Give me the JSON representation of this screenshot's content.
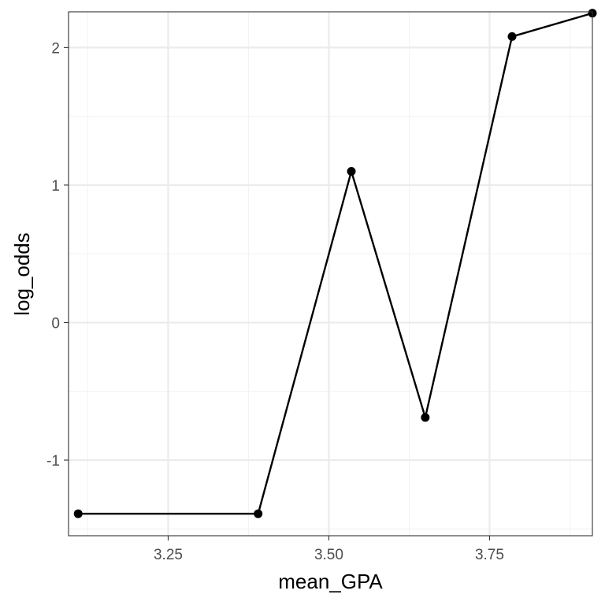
{
  "chart_data": {
    "type": "line",
    "xlabel": "mean_GPA",
    "ylabel": "log_odds",
    "x_ticks": [
      3.25,
      3.5,
      3.75
    ],
    "x_tick_labels": [
      "3.25",
      "3.50",
      "3.75"
    ],
    "y_ticks": [
      -1,
      0,
      1,
      2
    ],
    "y_tick_labels": [
      "-1",
      "0",
      "1",
      "2"
    ],
    "xlim": [
      3.095,
      3.91
    ],
    "ylim": [
      -1.55,
      2.26
    ],
    "grid": true,
    "series": [
      {
        "x": [
          3.11,
          3.39,
          3.535,
          3.65,
          3.785,
          3.91
        ],
        "y": [
          -1.39,
          -1.39,
          1.1,
          -0.69,
          2.08,
          2.25
        ]
      }
    ],
    "colors": {
      "line": "#000000",
      "point": "#000000",
      "grid_major": "#ebebeb",
      "grid_minor": "#f3f3f3",
      "panel_border": "#333333",
      "tick_label": "#4d4d4d",
      "axis_title": "#000000"
    }
  }
}
